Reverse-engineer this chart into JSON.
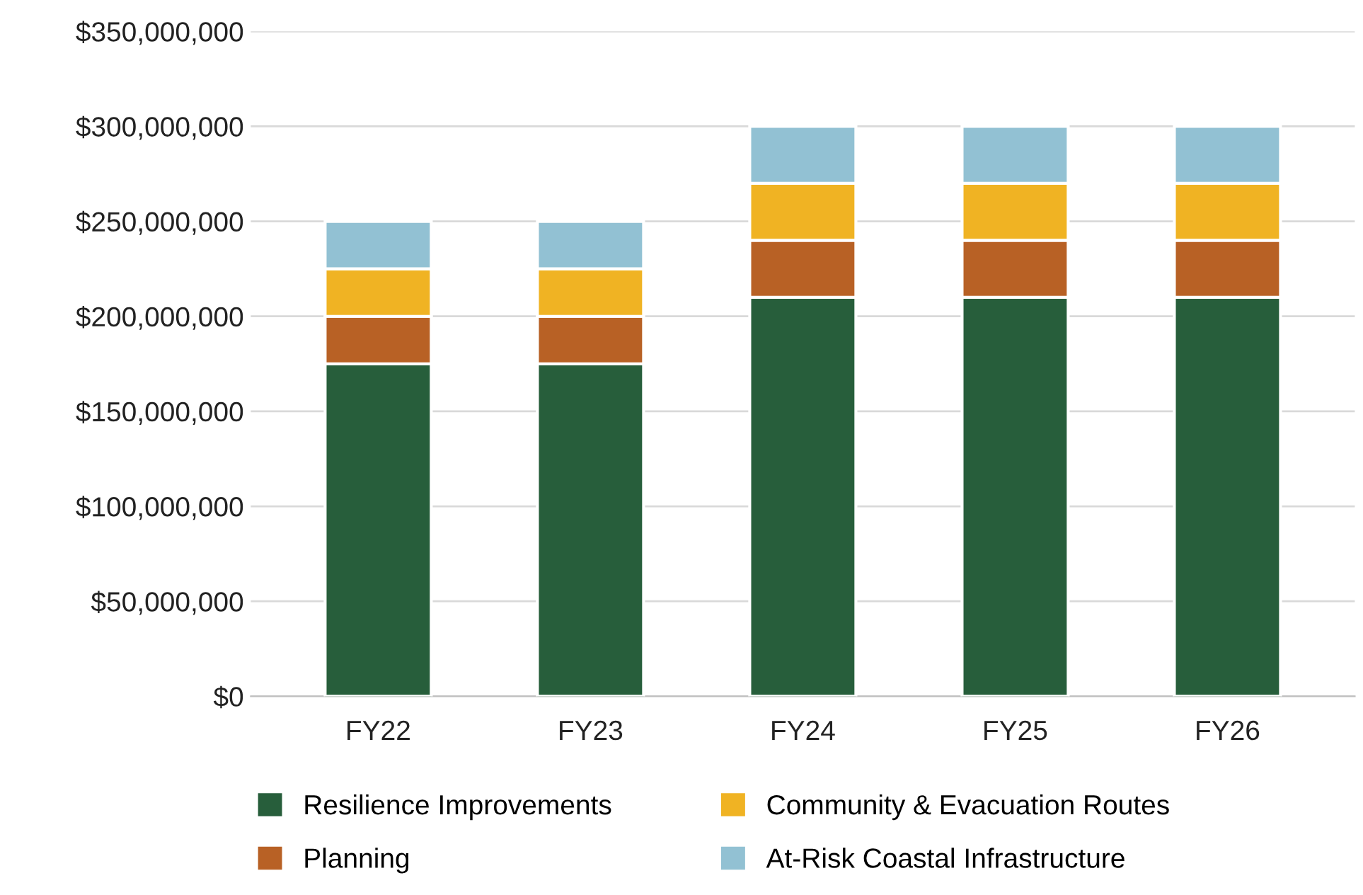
{
  "chart_data": {
    "type": "bar",
    "stacked": true,
    "categories": [
      "FY22",
      "FY23",
      "FY24",
      "FY25",
      "FY26"
    ],
    "series": [
      {
        "name": "Resilience Improvements",
        "color": "#275e3b",
        "values": [
          175000000,
          175000000,
          210000000,
          210000000,
          210000000
        ]
      },
      {
        "name": "Planning",
        "color": "#b86125",
        "values": [
          25000000,
          25000000,
          30000000,
          30000000,
          30000000
        ]
      },
      {
        "name": "Community & Evacuation Routes",
        "color": "#f0b323",
        "values": [
          25000000,
          25000000,
          30000000,
          30000000,
          30000000
        ]
      },
      {
        "name": "At-Risk Coastal Infrastructure",
        "color": "#92c1d3",
        "values": [
          25000000,
          25000000,
          30000000,
          30000000,
          30000000
        ]
      }
    ],
    "ylim": [
      0,
      350000000
    ],
    "yticks": [
      {
        "value": 0,
        "label": "$0"
      },
      {
        "value": 50000000,
        "label": "$50,000,000"
      },
      {
        "value": 100000000,
        "label": "$100,000,000"
      },
      {
        "value": 150000000,
        "label": "$150,000,000"
      },
      {
        "value": 200000000,
        "label": "$200,000,000"
      },
      {
        "value": 250000000,
        "label": "$250,000,000"
      },
      {
        "value": 300000000,
        "label": "$300,000,000"
      },
      {
        "value": 350000000,
        "label": "$350,000,000"
      }
    ],
    "grid": "y",
    "legend": "bottom"
  }
}
